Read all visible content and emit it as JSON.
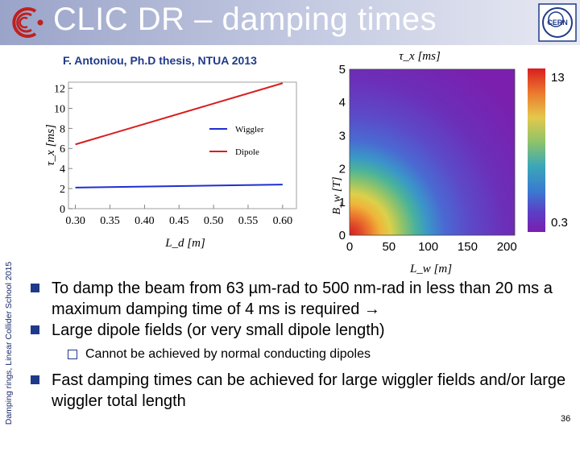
{
  "header": {
    "title": "CLIC DR – damping times"
  },
  "side_text": "Damping rings, Linear Collider School 2015",
  "credit": "F. Antoniou, Ph.D thesis, NTUA 2013",
  "colors": {
    "wiggler": "#1f2fd0",
    "dipole": "#d81e1e",
    "bullet": "#1f3a8a",
    "title_band": "#9aa4c9"
  },
  "chart_data": [
    {
      "type": "line",
      "title": "",
      "xlabel": "L_d [m]",
      "ylabel": "τ_x [ms]",
      "xlim": [
        0.29,
        0.62
      ],
      "ylim": [
        0,
        12.6
      ],
      "xticks": [
        "0.30",
        "0.35",
        "0.40",
        "0.45",
        "0.50",
        "0.55",
        "0.60"
      ],
      "yticks": [
        "0",
        "2",
        "4",
        "6",
        "8",
        "10",
        "12"
      ],
      "legend_position": "right",
      "series": [
        {
          "name": "Wiggler",
          "x": [
            0.3,
            0.6
          ],
          "y": [
            2.1,
            2.4
          ]
        },
        {
          "name": "Dipole",
          "x": [
            0.3,
            0.6
          ],
          "y": [
            6.4,
            12.5
          ]
        }
      ]
    },
    {
      "type": "heatmap",
      "title": "τ_x [ms]",
      "xlabel": "L_w [m]",
      "ylabel": "B_w [T]",
      "xlim": [
        0,
        210
      ],
      "ylim": [
        0,
        5
      ],
      "xticks": [
        "0",
        "50",
        "100",
        "150",
        "200"
      ],
      "yticks": [
        "0",
        "1",
        "2",
        "3",
        "4",
        "5"
      ],
      "colorbar": {
        "max_label": "13",
        "min_label": "0.3"
      }
    }
  ],
  "bullets": [
    {
      "level": 1,
      "text": "To damp the beam from 63 µm-rad to 500 nm-rad in less than 20 ms a maximum damping time of  4 ms is required →"
    },
    {
      "level": 1,
      "text": "Large dipole fields (or very small dipole length)"
    },
    {
      "level": 2,
      "text": "Cannot be achieved by normal conducting dipoles"
    },
    {
      "level": 1,
      "text": "Fast damping times can be achieved for large wiggler fields and/or large wiggler total length"
    }
  ],
  "page_number": "36"
}
